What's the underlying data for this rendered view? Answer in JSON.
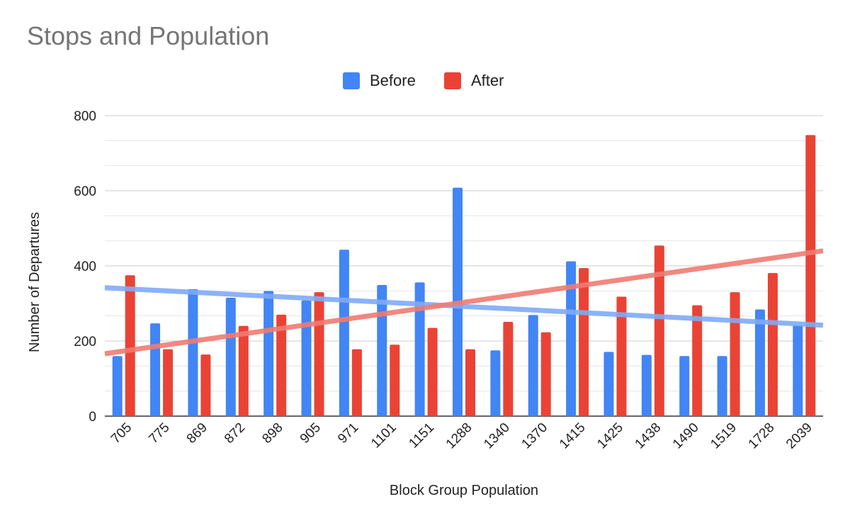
{
  "chart_data": {
    "type": "bar",
    "title": "Stops and Population",
    "xlabel": "Block Group Population",
    "ylabel": "Number of Departures",
    "categories": [
      "705",
      "775",
      "869",
      "872",
      "898",
      "905",
      "971",
      "1101",
      "1151",
      "1288",
      "1340",
      "1370",
      "1415",
      "1425",
      "1438",
      "1490",
      "1519",
      "1728",
      "2039"
    ],
    "series": [
      {
        "name": "Before",
        "color": "#4285F4",
        "values": [
          160,
          247,
          338,
          315,
          333,
          308,
          443,
          349,
          356,
          608,
          175,
          269,
          412,
          171,
          163,
          160,
          160,
          284,
          242
        ]
      },
      {
        "name": "After",
        "color": "#EA4335",
        "values": [
          375,
          178,
          164,
          240,
          270,
          330,
          178,
          190,
          235,
          178,
          251,
          223,
          394,
          318,
          454,
          295,
          330,
          381,
          748
        ]
      }
    ],
    "trendlines": [
      {
        "series": "Before",
        "color": "#7FAAF7",
        "start": 342,
        "end": 242
      },
      {
        "name_ref": "After",
        "series": "After",
        "color": "#F07B72",
        "start": 166,
        "end": 440
      }
    ],
    "ylim": [
      0,
      800
    ],
    "y_ticks": [
      "0",
      "200",
      "400",
      "600",
      "800"
    ],
    "grid": true,
    "legend": "top-center"
  }
}
